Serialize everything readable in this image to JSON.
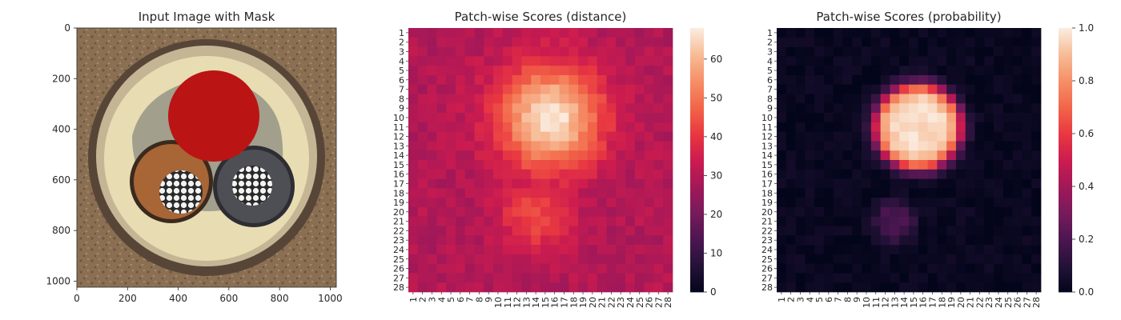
{
  "chart_data": [
    {
      "type": "image",
      "title": "Input Image with Mask",
      "xlim": [
        0,
        1024
      ],
      "ylim": [
        1024,
        0
      ],
      "xticks": [
        0,
        200,
        400,
        600,
        800,
        1000
      ],
      "yticks": [
        0,
        200,
        400,
        600,
        800,
        1000
      ],
      "xtick_labels": [
        "0",
        "200",
        "400",
        "600",
        "800",
        "1000"
      ],
      "ytick_labels": [
        "0",
        "200",
        "400",
        "600",
        "800",
        "1000"
      ],
      "colors": {
        "background_soil": "#8a6f52",
        "outer_ring": "#574637",
        "ring_body": "#c4b595",
        "inner_fill": "#e8dcb2",
        "insulation": "#8b8b80",
        "mask": "#bb1414",
        "copper_cable": "#a86535",
        "gray_cable": "#4e4e55",
        "wire": "#f2f2f2"
      }
    },
    {
      "type": "heatmap",
      "title": "Patch-wise Scores (distance)",
      "grid_size": 28,
      "xtick_labels": [
        "1",
        "2",
        "3",
        "4",
        "5",
        "6",
        "7",
        "8",
        "9",
        "10",
        "11",
        "12",
        "13",
        "14",
        "15",
        "16",
        "17",
        "18",
        "19",
        "20",
        "21",
        "22",
        "23",
        "24",
        "25",
        "26",
        "27",
        "28"
      ],
      "ytick_labels": [
        "1",
        "2",
        "3",
        "4",
        "5",
        "6",
        "7",
        "8",
        "9",
        "10",
        "11",
        "12",
        "13",
        "14",
        "15",
        "16",
        "17",
        "18",
        "19",
        "20",
        "21",
        "22",
        "23",
        "24",
        "25",
        "26",
        "27",
        "28"
      ],
      "vmin": 0,
      "vmax": 68,
      "colorbar_ticks": [
        0,
        10,
        20,
        30,
        40,
        50,
        60
      ],
      "colorbar_labels": [
        "0",
        "10",
        "20",
        "30",
        "40",
        "50",
        "60"
      ],
      "colormap": "rocket",
      "base_value": 30,
      "hot_spots": [
        {
          "name": "main blob",
          "center_col": 15.5,
          "center_row": 10,
          "radius": 3.8,
          "peak": 68
        },
        {
          "name": "lower blob",
          "center_col": 14,
          "center_row": 20.5,
          "radius": 2.6,
          "peak": 44
        }
      ]
    },
    {
      "type": "heatmap",
      "title": "Patch-wise Scores (probability)",
      "grid_size": 28,
      "xtick_labels": [
        "1",
        "2",
        "3",
        "4",
        "5",
        "6",
        "7",
        "8",
        "9",
        "10",
        "11",
        "12",
        "13",
        "14",
        "15",
        "16",
        "17",
        "18",
        "19",
        "20",
        "21",
        "22",
        "23",
        "24",
        "25",
        "26",
        "27",
        "28"
      ],
      "ytick_labels": [
        "1",
        "2",
        "3",
        "4",
        "5",
        "6",
        "7",
        "8",
        "9",
        "10",
        "11",
        "12",
        "13",
        "14",
        "15",
        "16",
        "17",
        "18",
        "19",
        "20",
        "21",
        "22",
        "23",
        "24",
        "25",
        "26",
        "27",
        "28"
      ],
      "vmin": 0.0,
      "vmax": 1.0,
      "colorbar_ticks": [
        0.0,
        0.2,
        0.4,
        0.6,
        0.8,
        1.0
      ],
      "colorbar_labels": [
        "0.0",
        "0.2",
        "0.4",
        "0.6",
        "0.8",
        "1.0"
      ],
      "colormap": "rocket",
      "base_value": 0.02,
      "hot_spots": [
        {
          "name": "main blob",
          "center_col": 15.5,
          "center_row": 11,
          "radius": 4.5,
          "peak": 0.97
        },
        {
          "name": "lower blob",
          "center_col": 13,
          "center_row": 21,
          "radius": 2.0,
          "peak": 0.22
        }
      ]
    }
  ]
}
